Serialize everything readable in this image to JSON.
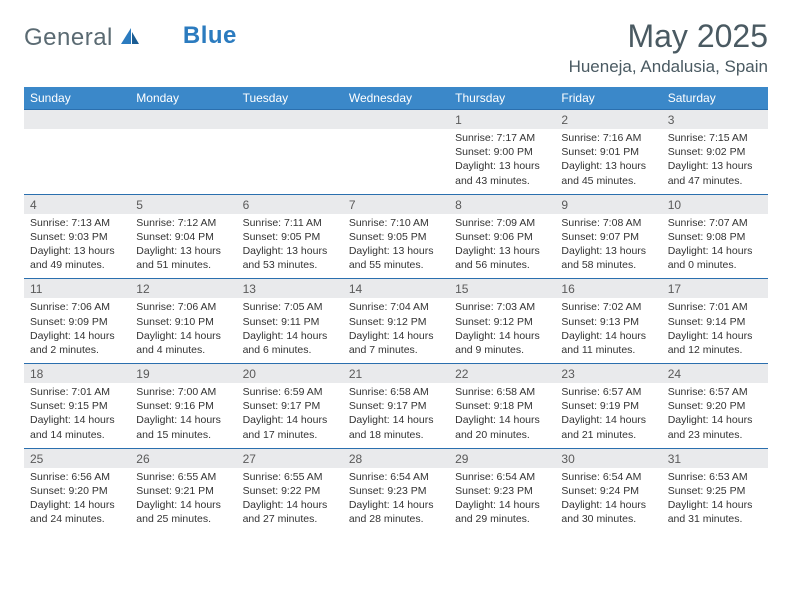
{
  "brand": {
    "part1": "General",
    "part2": "Blue"
  },
  "title": "May 2025",
  "location": "Hueneja, Andalusia, Spain",
  "colors": {
    "header_bg": "#3b88c9",
    "border": "#2b6fae",
    "daynum_bg": "#e9eaec",
    "text_dark": "#4a5a62",
    "text_body": "#333333"
  },
  "day_names": [
    "Sunday",
    "Monday",
    "Tuesday",
    "Wednesday",
    "Thursday",
    "Friday",
    "Saturday"
  ],
  "weeks": [
    [
      null,
      null,
      null,
      null,
      {
        "n": "1",
        "sr": "7:17 AM",
        "ss": "9:00 PM",
        "dl": "13 hours and 43 minutes."
      },
      {
        "n": "2",
        "sr": "7:16 AM",
        "ss": "9:01 PM",
        "dl": "13 hours and 45 minutes."
      },
      {
        "n": "3",
        "sr": "7:15 AM",
        "ss": "9:02 PM",
        "dl": "13 hours and 47 minutes."
      }
    ],
    [
      {
        "n": "4",
        "sr": "7:13 AM",
        "ss": "9:03 PM",
        "dl": "13 hours and 49 minutes."
      },
      {
        "n": "5",
        "sr": "7:12 AM",
        "ss": "9:04 PM",
        "dl": "13 hours and 51 minutes."
      },
      {
        "n": "6",
        "sr": "7:11 AM",
        "ss": "9:05 PM",
        "dl": "13 hours and 53 minutes."
      },
      {
        "n": "7",
        "sr": "7:10 AM",
        "ss": "9:05 PM",
        "dl": "13 hours and 55 minutes."
      },
      {
        "n": "8",
        "sr": "7:09 AM",
        "ss": "9:06 PM",
        "dl": "13 hours and 56 minutes."
      },
      {
        "n": "9",
        "sr": "7:08 AM",
        "ss": "9:07 PM",
        "dl": "13 hours and 58 minutes."
      },
      {
        "n": "10",
        "sr": "7:07 AM",
        "ss": "9:08 PM",
        "dl": "14 hours and 0 minutes."
      }
    ],
    [
      {
        "n": "11",
        "sr": "7:06 AM",
        "ss": "9:09 PM",
        "dl": "14 hours and 2 minutes."
      },
      {
        "n": "12",
        "sr": "7:06 AM",
        "ss": "9:10 PM",
        "dl": "14 hours and 4 minutes."
      },
      {
        "n": "13",
        "sr": "7:05 AM",
        "ss": "9:11 PM",
        "dl": "14 hours and 6 minutes."
      },
      {
        "n": "14",
        "sr": "7:04 AM",
        "ss": "9:12 PM",
        "dl": "14 hours and 7 minutes."
      },
      {
        "n": "15",
        "sr": "7:03 AM",
        "ss": "9:12 PM",
        "dl": "14 hours and 9 minutes."
      },
      {
        "n": "16",
        "sr": "7:02 AM",
        "ss": "9:13 PM",
        "dl": "14 hours and 11 minutes."
      },
      {
        "n": "17",
        "sr": "7:01 AM",
        "ss": "9:14 PM",
        "dl": "14 hours and 12 minutes."
      }
    ],
    [
      {
        "n": "18",
        "sr": "7:01 AM",
        "ss": "9:15 PM",
        "dl": "14 hours and 14 minutes."
      },
      {
        "n": "19",
        "sr": "7:00 AM",
        "ss": "9:16 PM",
        "dl": "14 hours and 15 minutes."
      },
      {
        "n": "20",
        "sr": "6:59 AM",
        "ss": "9:17 PM",
        "dl": "14 hours and 17 minutes."
      },
      {
        "n": "21",
        "sr": "6:58 AM",
        "ss": "9:17 PM",
        "dl": "14 hours and 18 minutes."
      },
      {
        "n": "22",
        "sr": "6:58 AM",
        "ss": "9:18 PM",
        "dl": "14 hours and 20 minutes."
      },
      {
        "n": "23",
        "sr": "6:57 AM",
        "ss": "9:19 PM",
        "dl": "14 hours and 21 minutes."
      },
      {
        "n": "24",
        "sr": "6:57 AM",
        "ss": "9:20 PM",
        "dl": "14 hours and 23 minutes."
      }
    ],
    [
      {
        "n": "25",
        "sr": "6:56 AM",
        "ss": "9:20 PM",
        "dl": "14 hours and 24 minutes."
      },
      {
        "n": "26",
        "sr": "6:55 AM",
        "ss": "9:21 PM",
        "dl": "14 hours and 25 minutes."
      },
      {
        "n": "27",
        "sr": "6:55 AM",
        "ss": "9:22 PM",
        "dl": "14 hours and 27 minutes."
      },
      {
        "n": "28",
        "sr": "6:54 AM",
        "ss": "9:23 PM",
        "dl": "14 hours and 28 minutes."
      },
      {
        "n": "29",
        "sr": "6:54 AM",
        "ss": "9:23 PM",
        "dl": "14 hours and 29 minutes."
      },
      {
        "n": "30",
        "sr": "6:54 AM",
        "ss": "9:24 PM",
        "dl": "14 hours and 30 minutes."
      },
      {
        "n": "31",
        "sr": "6:53 AM",
        "ss": "9:25 PM",
        "dl": "14 hours and 31 minutes."
      }
    ]
  ],
  "labels": {
    "sunrise": "Sunrise:",
    "sunset": "Sunset:",
    "daylight": "Daylight:"
  }
}
